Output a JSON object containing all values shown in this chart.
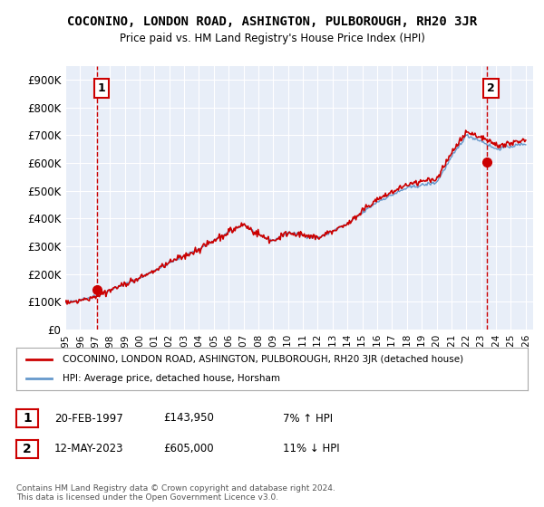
{
  "title": "COCONINO, LONDON ROAD, ASHINGTON, PULBOROUGH, RH20 3JR",
  "subtitle": "Price paid vs. HM Land Registry's House Price Index (HPI)",
  "xlim": [
    1995.0,
    2026.5
  ],
  "ylim": [
    0,
    950000
  ],
  "yticks": [
    0,
    100000,
    200000,
    300000,
    400000,
    500000,
    600000,
    700000,
    800000,
    900000
  ],
  "ytick_labels": [
    "£0",
    "£100K",
    "£200K",
    "£300K",
    "£400K",
    "£500K",
    "£600K",
    "£700K",
    "£800K",
    "£900K"
  ],
  "xticks": [
    1995,
    1996,
    1997,
    1998,
    1999,
    2000,
    2001,
    2002,
    2003,
    2004,
    2005,
    2006,
    2007,
    2008,
    2009,
    2010,
    2011,
    2012,
    2013,
    2014,
    2015,
    2016,
    2017,
    2018,
    2019,
    2020,
    2021,
    2022,
    2023,
    2024,
    2025,
    2026
  ],
  "background_color": "#e8eef8",
  "grid_color": "#ffffff",
  "sale1_x": 1997.13,
  "sale1_y": 143950,
  "sale1_label": "1",
  "sale1_date": "20-FEB-1997",
  "sale1_price": "£143,950",
  "sale1_hpi": "7% ↑ HPI",
  "sale2_x": 2023.36,
  "sale2_y": 605000,
  "sale2_label": "2",
  "sale2_date": "12-MAY-2023",
  "sale2_price": "£605,000",
  "sale2_hpi": "11% ↓ HPI",
  "line1_color": "#cc0000",
  "line2_color": "#6699cc",
  "marker_color": "#cc0000",
  "dashed_line_color": "#cc0000",
  "legend1_text": "COCONINO, LONDON ROAD, ASHINGTON, PULBOROUGH, RH20 3JR (detached house)",
  "legend2_text": "HPI: Average price, detached house, Horsham",
  "footer": "Contains HM Land Registry data © Crown copyright and database right 2024.\nThis data is licensed under the Open Government Licence v3.0."
}
